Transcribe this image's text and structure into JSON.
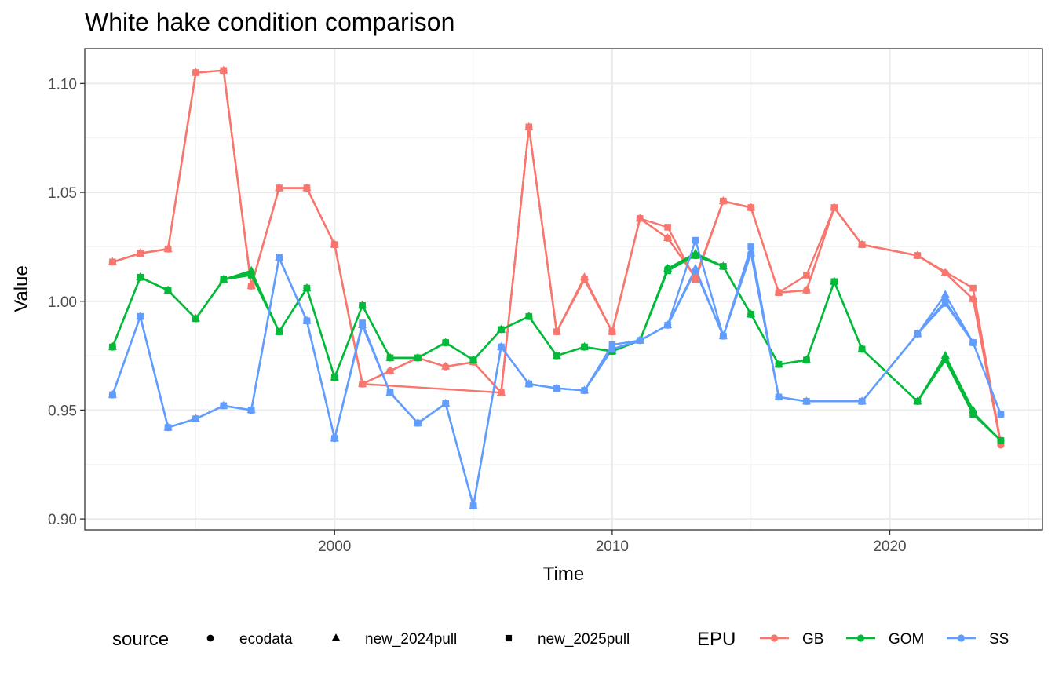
{
  "chart_data": {
    "type": "line",
    "title": "White hake condition comparison",
    "xlabel": "Time",
    "ylabel": "Value",
    "xlim": [
      1991.0,
      2025.5
    ],
    "ylim": [
      0.895,
      1.116
    ],
    "x_ticks": [
      2000,
      2010,
      2020
    ],
    "y_ticks": [
      0.9,
      0.95,
      1.0,
      1.05,
      1.1
    ],
    "y_tick_labels": [
      "0.90",
      "0.95",
      "1.00",
      "1.05",
      "1.10"
    ],
    "grid": true,
    "legend_position": "bottom",
    "legend": {
      "shape_title": "source",
      "shape_items": [
        {
          "label": "ecodata",
          "shape": "circle"
        },
        {
          "label": "new_2024pull",
          "shape": "triangle"
        },
        {
          "label": "new_2025pull",
          "shape": "square"
        }
      ],
      "color_title": "EPU",
      "color_items": [
        {
          "label": "GB",
          "color": "#F8766D"
        },
        {
          "label": "GOM",
          "color": "#00BA38"
        },
        {
          "label": "SS",
          "color": "#619CFF"
        }
      ]
    },
    "series": [
      {
        "name": "GB",
        "source": "ecodata",
        "color": "#F8766D",
        "shape": "circle",
        "x": [
          1992,
          1993,
          1994,
          1995,
          1996,
          1997,
          1998,
          1999,
          2000,
          2001,
          2002,
          2003,
          2004,
          2005,
          2006,
          2007,
          2008,
          2009,
          2010,
          2011,
          2012,
          2013,
          2014,
          2015,
          2016,
          2017,
          2018,
          2019,
          2021,
          2022,
          2023,
          2024
        ],
        "values": [
          1.018,
          1.022,
          1.024,
          1.105,
          1.106,
          1.007,
          1.052,
          1.052,
          1.026,
          0.962,
          0.968,
          0.974,
          0.97,
          0.972,
          0.958,
          1.08,
          0.986,
          1.01,
          0.986,
          1.038,
          1.029,
          1.011,
          1.046,
          1.043,
          1.004,
          1.005,
          1.043,
          1.026,
          1.021,
          1.013,
          1.001,
          0.934
        ]
      },
      {
        "name": "GB",
        "source": "new_2024pull",
        "color": "#F8766D",
        "shape": "triangle",
        "x": [
          1992,
          1993,
          1994,
          1995,
          1996,
          1997,
          1998,
          1999,
          2000,
          2001,
          2002,
          2003,
          2004,
          2005,
          2006,
          2007,
          2008,
          2009,
          2010,
          2011,
          2012,
          2013,
          2014,
          2015,
          2016,
          2017,
          2018,
          2019,
          2021,
          2022,
          2023
        ],
        "values": [
          1.018,
          1.022,
          1.024,
          1.105,
          1.106,
          1.007,
          1.052,
          1.052,
          1.026,
          0.962,
          0.968,
          0.974,
          0.97,
          0.972,
          0.958,
          1.08,
          0.986,
          1.011,
          0.986,
          1.038,
          1.029,
          1.011,
          1.046,
          1.043,
          1.004,
          1.005,
          1.043,
          1.026,
          1.021,
          1.013,
          1.001
        ]
      },
      {
        "name": "GB",
        "source": "new_2025pull",
        "color": "#F8766D",
        "shape": "square",
        "x": [
          1992,
          1993,
          1994,
          1995,
          1996,
          1997,
          1998,
          1999,
          2000,
          2001,
          2006,
          2007,
          2008,
          2009,
          2010,
          2011,
          2012,
          2013,
          2014,
          2015,
          2016,
          2017,
          2018,
          2019,
          2021,
          2023,
          2024
        ],
        "values": [
          1.018,
          1.022,
          1.024,
          1.105,
          1.106,
          1.007,
          1.052,
          1.052,
          1.026,
          0.962,
          0.958,
          1.08,
          0.986,
          1.01,
          0.986,
          1.038,
          1.034,
          1.01,
          1.046,
          1.043,
          1.004,
          1.012,
          1.043,
          1.026,
          1.021,
          1.006,
          0.935
        ]
      },
      {
        "name": "GOM",
        "source": "ecodata",
        "color": "#00BA38",
        "shape": "circle",
        "x": [
          1992,
          1993,
          1994,
          1995,
          1996,
          1997,
          1998,
          1999,
          2000,
          2001,
          2002,
          2003,
          2004,
          2005,
          2006,
          2007,
          2008,
          2009,
          2010,
          2011,
          2012,
          2013,
          2014,
          2015,
          2016,
          2017,
          2018,
          2019,
          2021,
          2022,
          2023,
          2024
        ],
        "values": [
          0.979,
          1.011,
          1.005,
          0.992,
          1.01,
          1.013,
          0.986,
          1.006,
          0.965,
          0.998,
          0.974,
          0.974,
          0.981,
          0.973,
          0.987,
          0.993,
          0.975,
          0.979,
          0.977,
          0.982,
          1.015,
          1.021,
          1.016,
          0.994,
          0.971,
          0.973,
          1.009,
          0.978,
          0.954,
          0.974,
          0.949,
          0.936
        ]
      },
      {
        "name": "GOM",
        "source": "new_2024pull",
        "color": "#00BA38",
        "shape": "triangle",
        "x": [
          1992,
          1993,
          1994,
          1995,
          1996,
          1997,
          1998,
          1999,
          2000,
          2001,
          2002,
          2003,
          2004,
          2005,
          2006,
          2007,
          2008,
          2009,
          2010,
          2011,
          2012,
          2013,
          2014,
          2015,
          2016,
          2017,
          2018,
          2019,
          2021,
          2022,
          2023
        ],
        "values": [
          0.979,
          1.011,
          1.005,
          0.992,
          1.01,
          1.014,
          0.986,
          1.006,
          0.965,
          0.998,
          0.974,
          0.974,
          0.981,
          0.973,
          0.987,
          0.993,
          0.975,
          0.979,
          0.977,
          0.982,
          1.015,
          1.022,
          1.016,
          0.994,
          0.971,
          0.973,
          1.009,
          0.978,
          0.954,
          0.975,
          0.95
        ]
      },
      {
        "name": "GOM",
        "source": "new_2025pull",
        "color": "#00BA38",
        "shape": "square",
        "x": [
          1992,
          1993,
          1994,
          1995,
          1996,
          1997,
          1998,
          1999,
          2000,
          2001,
          2002,
          2003,
          2004,
          2005,
          2006,
          2007,
          2008,
          2009,
          2010,
          2011,
          2012,
          2013,
          2014,
          2015,
          2016,
          2017,
          2018,
          2019,
          2021,
          2022,
          2023,
          2024
        ],
        "values": [
          0.979,
          1.011,
          1.005,
          0.992,
          1.01,
          1.012,
          0.986,
          1.006,
          0.965,
          0.998,
          0.974,
          0.974,
          0.981,
          0.973,
          0.987,
          0.993,
          0.975,
          0.979,
          0.977,
          0.982,
          1.014,
          1.021,
          1.016,
          0.994,
          0.971,
          0.973,
          1.009,
          0.978,
          0.954,
          0.973,
          0.948,
          0.936
        ]
      },
      {
        "name": "SS",
        "source": "ecodata",
        "color": "#619CFF",
        "shape": "circle",
        "x": [
          1992,
          1993,
          1994,
          1995,
          1996,
          1997,
          1998,
          1999,
          2000,
          2001,
          2002,
          2003,
          2004,
          2005,
          2006,
          2007,
          2008,
          2009,
          2010,
          2011,
          2012,
          2013,
          2014,
          2015,
          2016,
          2017,
          2019,
          2021,
          2022,
          2023,
          2024
        ],
        "values": [
          0.957,
          0.993,
          0.942,
          0.946,
          0.952,
          0.95,
          1.02,
          0.991,
          0.937,
          0.989,
          0.958,
          0.944,
          0.953,
          0.906,
          0.979,
          0.962,
          0.96,
          0.959,
          0.978,
          0.982,
          0.989,
          1.014,
          0.984,
          1.022,
          0.956,
          0.954,
          0.954,
          0.985,
          1.0,
          0.981,
          0.948
        ]
      },
      {
        "name": "SS",
        "source": "new_2024pull",
        "color": "#619CFF",
        "shape": "triangle",
        "x": [
          1992,
          1993,
          1994,
          1995,
          1996,
          1997,
          1998,
          1999,
          2000,
          2001,
          2002,
          2003,
          2004,
          2005,
          2006,
          2007,
          2008,
          2009,
          2010,
          2011,
          2012,
          2013,
          2014,
          2015,
          2016,
          2017,
          2019,
          2021,
          2022,
          2023
        ],
        "values": [
          0.957,
          0.993,
          0.942,
          0.946,
          0.952,
          0.95,
          1.02,
          0.991,
          0.937,
          0.989,
          0.958,
          0.944,
          0.953,
          0.906,
          0.979,
          0.962,
          0.96,
          0.959,
          0.978,
          0.982,
          0.989,
          1.015,
          0.984,
          1.022,
          0.956,
          0.954,
          0.954,
          0.985,
          1.003,
          0.981
        ]
      },
      {
        "name": "SS",
        "source": "new_2025pull",
        "color": "#619CFF",
        "shape": "square",
        "x": [
          1992,
          1993,
          1994,
          1995,
          1996,
          1997,
          1998,
          1999,
          2000,
          2001,
          2002,
          2003,
          2004,
          2005,
          2006,
          2007,
          2008,
          2009,
          2010,
          2011,
          2012,
          2013,
          2014,
          2015,
          2016,
          2017,
          2019,
          2021,
          2022,
          2023,
          2024
        ],
        "values": [
          0.957,
          0.993,
          0.942,
          0.946,
          0.952,
          0.95,
          1.02,
          0.991,
          0.937,
          0.99,
          0.958,
          0.944,
          0.953,
          0.906,
          0.979,
          0.962,
          0.96,
          0.959,
          0.98,
          0.982,
          0.989,
          1.028,
          0.984,
          1.025,
          0.956,
          0.954,
          0.954,
          0.985,
          0.999,
          0.981,
          0.948
        ]
      }
    ]
  }
}
